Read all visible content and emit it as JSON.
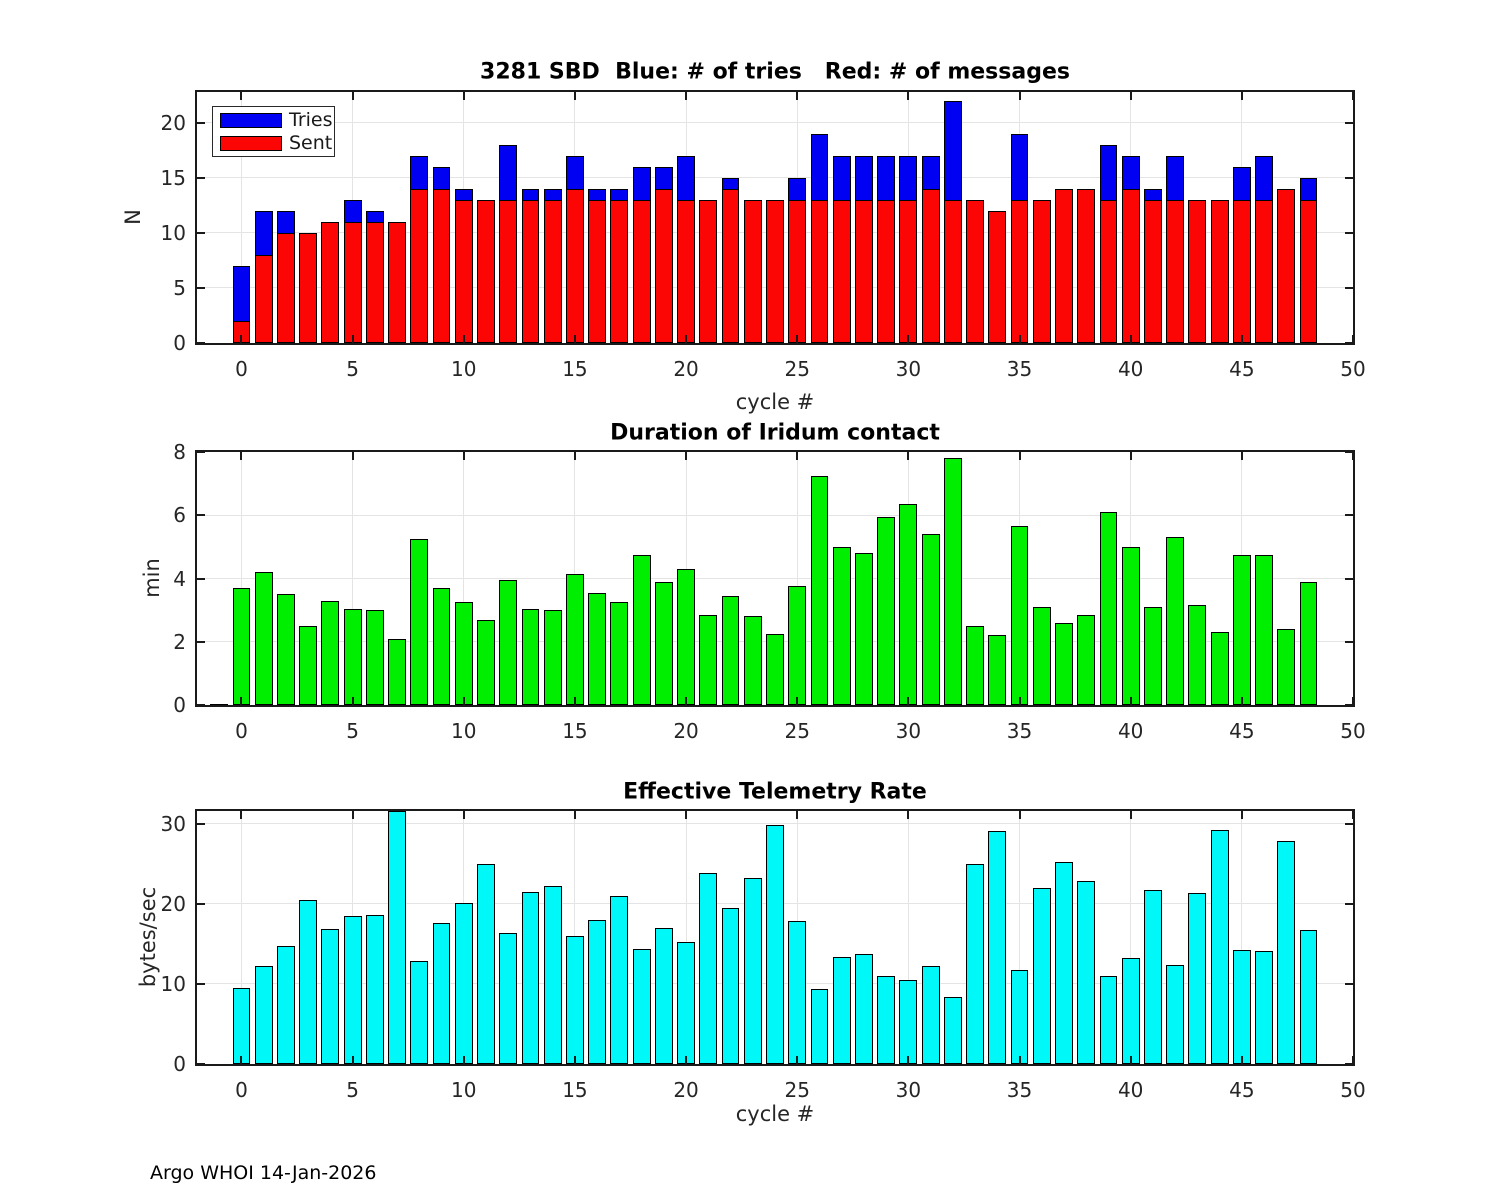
{
  "figure": {
    "footer": "Argo WHOI 14-Jan-2026",
    "background": "#ffffff"
  },
  "chart_data": [
    {
      "type": "bar",
      "variant": "overlaid",
      "title": "3281 SBD  Blue: # of tries   Red: # of messages",
      "xlabel": "cycle #",
      "ylabel": "N",
      "xlim": [
        -2,
        50
      ],
      "ylim": [
        0,
        22.8
      ],
      "xticks": [
        0,
        5,
        10,
        15,
        20,
        25,
        30,
        35,
        40,
        45,
        50
      ],
      "yticks": [
        0,
        5,
        10,
        15,
        20
      ],
      "bar_width": 0.8,
      "grid": true,
      "legend": {
        "position": "top-left",
        "entries": [
          {
            "label": "Tries",
            "color": "#0000f2"
          },
          {
            "label": "Sent",
            "color": "#fb0505"
          }
        ]
      },
      "x": [
        0,
        1,
        2,
        3,
        4,
        5,
        6,
        7,
        8,
        9,
        10,
        11,
        12,
        13,
        14,
        15,
        16,
        17,
        18,
        19,
        20,
        21,
        22,
        23,
        24,
        25,
        26,
        27,
        28,
        29,
        30,
        31,
        32,
        33,
        34,
        35,
        36,
        37,
        38,
        39,
        40,
        41,
        42,
        43,
        44,
        45,
        46,
        47,
        48
      ],
      "series": [
        {
          "name": "Tries",
          "color": "#0000f2",
          "values": [
            7,
            12,
            12,
            10,
            11,
            13,
            12,
            11,
            17,
            16,
            14,
            13,
            18,
            14,
            14,
            17,
            14,
            14,
            16,
            16,
            17,
            13,
            15,
            13,
            13,
            15,
            19,
            17,
            17,
            17,
            17,
            17,
            22,
            13,
            12,
            19,
            13,
            14,
            14,
            18,
            17,
            14,
            17,
            13,
            13,
            16,
            17,
            14,
            15
          ]
        },
        {
          "name": "Sent",
          "color": "#fb0505",
          "values": [
            2,
            8,
            10,
            10,
            11,
            11,
            11,
            11,
            14,
            14,
            13,
            13,
            13,
            13,
            13,
            14,
            13,
            13,
            13,
            14,
            13,
            13,
            14,
            13,
            13,
            13,
            13,
            13,
            13,
            13,
            13,
            14,
            13,
            13,
            12,
            13,
            13,
            14,
            14,
            13,
            14,
            13,
            13,
            13,
            13,
            13,
            13,
            14,
            13
          ]
        }
      ]
    },
    {
      "type": "bar",
      "title": "Duration of Iridum contact",
      "xlabel": "",
      "ylabel": "min",
      "xlim": [
        -2,
        50
      ],
      "ylim": [
        0,
        8
      ],
      "xticks": [
        0,
        5,
        10,
        15,
        20,
        25,
        30,
        35,
        40,
        45,
        50
      ],
      "yticks": [
        0,
        2,
        4,
        6,
        8
      ],
      "bar_width": 0.8,
      "grid": true,
      "color": "#00ee00",
      "x": [
        -1,
        0,
        1,
        2,
        3,
        4,
        5,
        6,
        7,
        8,
        9,
        10,
        11,
        12,
        13,
        14,
        15,
        16,
        17,
        18,
        19,
        20,
        21,
        22,
        23,
        24,
        25,
        26,
        27,
        28,
        29,
        30,
        31,
        32,
        33,
        34,
        35,
        36,
        37,
        38,
        39,
        40,
        41,
        42,
        43,
        44,
        45,
        46,
        47,
        48
      ],
      "values": [
        0.04,
        3.7,
        4.2,
        3.5,
        2.5,
        3.3,
        3.05,
        3.0,
        2.1,
        5.25,
        3.7,
        3.25,
        2.7,
        3.95,
        3.05,
        3.0,
        4.15,
        3.55,
        3.25,
        4.75,
        3.9,
        4.3,
        2.85,
        3.45,
        2.8,
        2.25,
        3.75,
        7.25,
        5.0,
        4.8,
        5.95,
        6.35,
        5.4,
        7.8,
        2.5,
        2.2,
        5.65,
        3.1,
        2.6,
        2.85,
        6.1,
        5.0,
        3.1,
        5.3,
        3.15,
        2.3,
        4.75,
        4.75,
        2.4,
        3.9
      ]
    },
    {
      "type": "bar",
      "title": "Effective Telemetry Rate",
      "xlabel": "cycle #",
      "ylabel": "bytes/sec",
      "xlim": [
        -2,
        50
      ],
      "ylim": [
        0,
        31.6
      ],
      "xticks": [
        0,
        5,
        10,
        15,
        20,
        25,
        30,
        35,
        40,
        45,
        50
      ],
      "yticks": [
        0,
        10,
        20,
        30
      ],
      "bar_width": 0.8,
      "grid": true,
      "color": "#00f8f8",
      "x": [
        0,
        1,
        2,
        3,
        4,
        5,
        6,
        7,
        8,
        9,
        10,
        11,
        12,
        13,
        14,
        15,
        16,
        17,
        18,
        19,
        20,
        21,
        22,
        23,
        24,
        25,
        26,
        27,
        28,
        29,
        30,
        31,
        32,
        33,
        34,
        35,
        36,
        37,
        38,
        39,
        40,
        41,
        42,
        43,
        44,
        45,
        46,
        47,
        48
      ],
      "values": [
        9.5,
        12.3,
        14.8,
        20.5,
        16.9,
        18.5,
        18.6,
        31.6,
        12.9,
        17.6,
        20.1,
        25.0,
        16.3,
        21.5,
        22.2,
        16.0,
        18.0,
        21.0,
        14.4,
        17.0,
        15.3,
        23.8,
        19.5,
        23.2,
        29.8,
        17.8,
        9.4,
        13.4,
        13.7,
        11.0,
        10.5,
        12.2,
        8.4,
        25.0,
        29.1,
        11.8,
        22.0,
        25.2,
        22.8,
        11.0,
        13.2,
        21.7,
        12.4,
        21.3,
        29.2,
        14.2,
        14.1,
        27.9,
        16.7
      ]
    }
  ]
}
